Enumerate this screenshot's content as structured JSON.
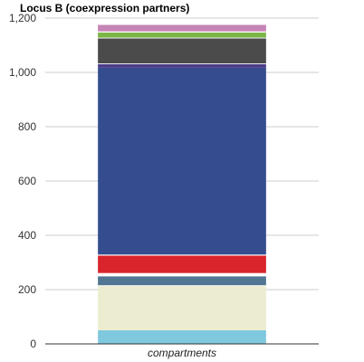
{
  "chart_data": {
    "type": "bar",
    "stacked": true,
    "title": "Locus B (coexpression partners)",
    "xlabel": "",
    "ylabel": "",
    "categories": [
      "compartments"
    ],
    "ylim": [
      0,
      1200
    ],
    "yticks": [
      0,
      200,
      400,
      600,
      800,
      1000,
      1200
    ],
    "ytick_labels": [
      "0",
      "200",
      "400",
      "600",
      "800",
      "1,000",
      "1,200"
    ],
    "grid": true,
    "legend": "none",
    "series": [
      {
        "values": [
          50
        ],
        "color": "#7fc8de"
      },
      {
        "values": [
          163
        ],
        "color": "#ececd0"
      },
      {
        "values": [
          3
        ],
        "color": "#ffffff"
      },
      {
        "values": [
          33
        ],
        "color": "#527592"
      },
      {
        "values": [
          12
        ],
        "color": "#ffffff"
      },
      {
        "values": [
          64
        ],
        "color": "#d9242b"
      },
      {
        "values": [
          4
        ],
        "color": "#ffffff"
      },
      {
        "values": [
          688
        ],
        "color": "#354d8f"
      },
      {
        "values": [
          13
        ],
        "color": "#4d3e8a"
      },
      {
        "values": [
          3
        ],
        "color": "#ffffff"
      },
      {
        "values": [
          92
        ],
        "color": "#4b4b4b"
      },
      {
        "values": [
          3
        ],
        "color": "#ffffff"
      },
      {
        "values": [
          19
        ],
        "color": "#7ab648"
      },
      {
        "values": [
          4
        ],
        "color": "#ffffff"
      },
      {
        "values": [
          24
        ],
        "color": "#c684b6"
      }
    ]
  }
}
